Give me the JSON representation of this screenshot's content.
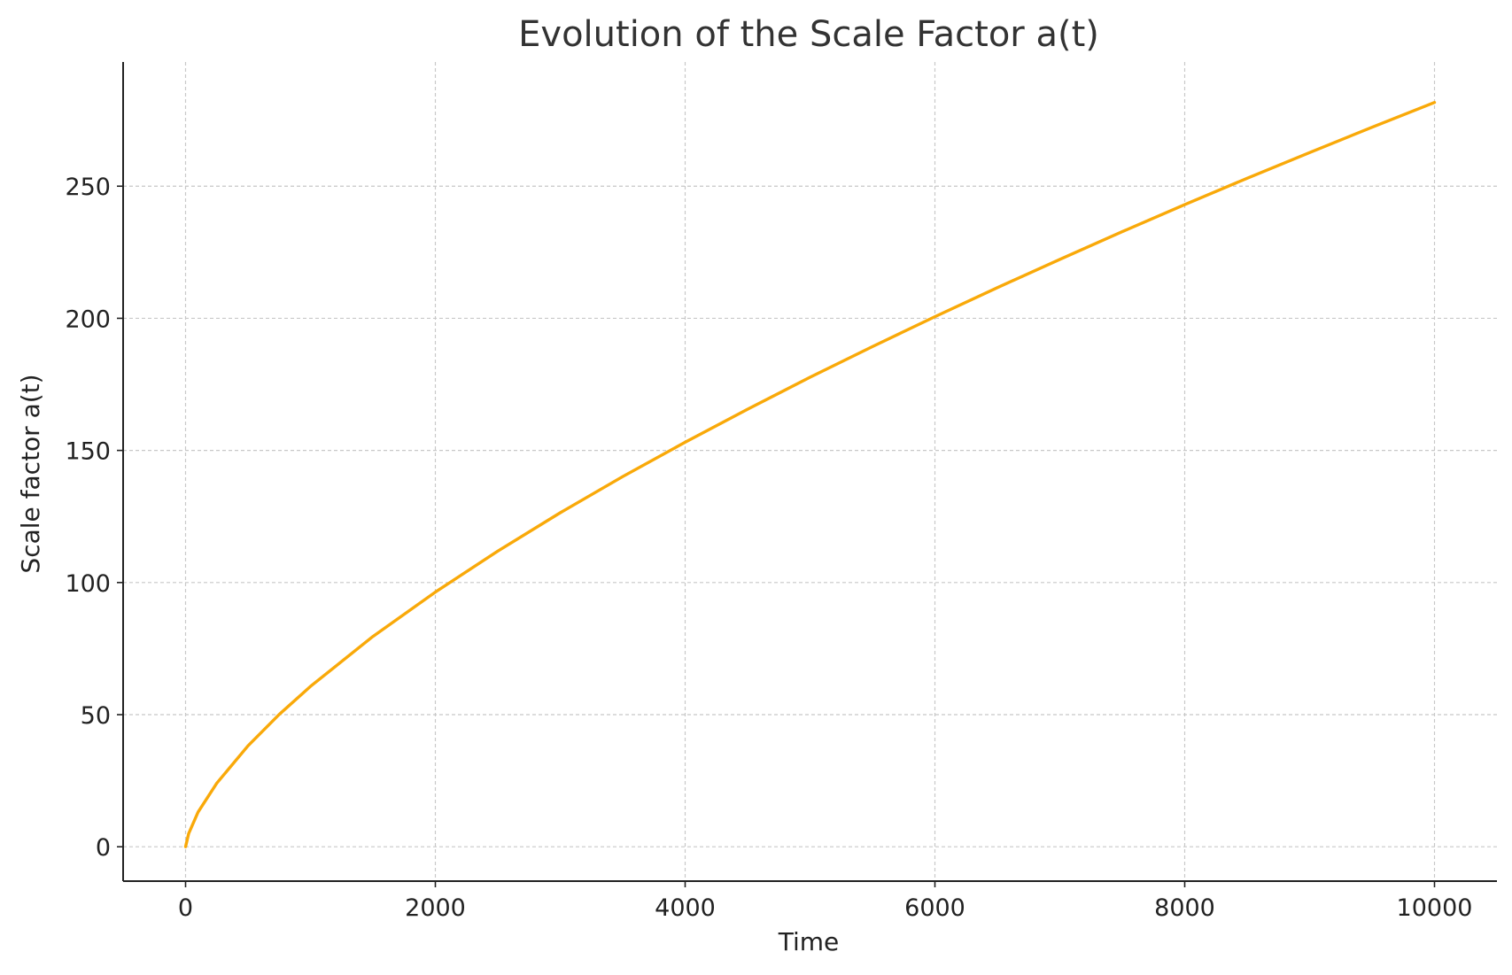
{
  "chart_data": {
    "type": "line",
    "title": "Evolution of the Scale Factor a(t)",
    "xlabel": "Time",
    "ylabel": "Scale factor a(t)",
    "xlim": [
      -500,
      10500
    ],
    "ylim": [
      -13,
      297
    ],
    "x_ticks": [
      0,
      2000,
      4000,
      6000,
      8000,
      10000
    ],
    "y_ticks": [
      0,
      50,
      100,
      150,
      200,
      250
    ],
    "grid": true,
    "line_color": "#F9A909",
    "series": [
      {
        "x": [
          0,
          25,
          100,
          250,
          500,
          750,
          1000,
          1500,
          2000,
          2500,
          3000,
          3500,
          4000,
          4500,
          5000,
          5500,
          6000,
          6500,
          7000,
          7500,
          8000,
          8500,
          9000,
          9500,
          10000
        ],
        "values": [
          0,
          5.0,
          13.1,
          24.1,
          38.2,
          50.1,
          60.7,
          79.6,
          96.4,
          111.9,
          126.4,
          140.1,
          153.1,
          165.6,
          177.7,
          189.3,
          200.6,
          211.6,
          222.3,
          232.8,
          243.0,
          253.0,
          262.7,
          272.3,
          281.7
        ]
      }
    ]
  }
}
